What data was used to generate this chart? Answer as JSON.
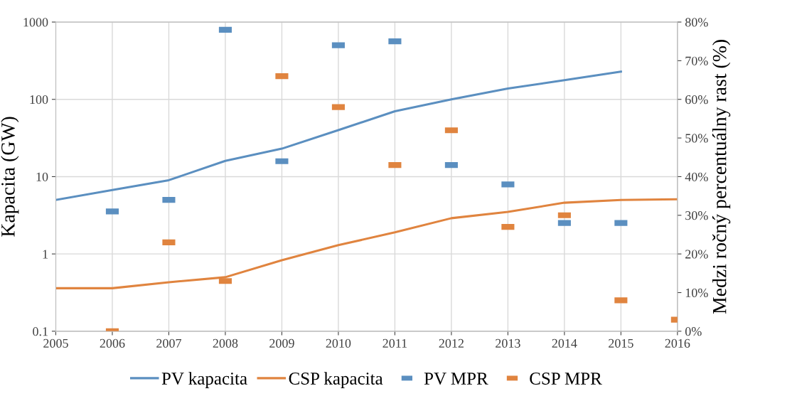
{
  "chart_data": {
    "type": "line",
    "x": [
      2005,
      2006,
      2007,
      2008,
      2009,
      2010,
      2011,
      2012,
      2013,
      2014,
      2015,
      2016
    ],
    "ylabel": "Kapacita (GW)",
    "y2label": "Medzi ročný percentuálny rast (%)",
    "xlim": [
      2005,
      2016
    ],
    "xticks": [
      2005,
      2006,
      2007,
      2008,
      2009,
      2010,
      2011,
      2012,
      2013,
      2014,
      2015,
      2016
    ],
    "log": "y",
    "ylim": [
      0.1,
      1000
    ],
    "yticks": [
      0.1,
      1,
      10,
      100,
      1000
    ],
    "y2lim": [
      0,
      80
    ],
    "y2ticks": [
      {
        "value": 0,
        "label": "0%"
      },
      {
        "value": 10,
        "label": "10%"
      },
      {
        "value": 20,
        "label": "20%"
      },
      {
        "value": 30,
        "label": "30%"
      },
      {
        "value": 40,
        "label": "40%"
      },
      {
        "value": 50,
        "label": "50%"
      },
      {
        "value": 60,
        "label": "60%"
      },
      {
        "value": 70,
        "label": "70%"
      },
      {
        "value": 80,
        "label": "80%"
      }
    ],
    "grid": true,
    "legend": "bottom",
    "series": [
      {
        "name": "PV kapacita",
        "color": "#5b8fc0",
        "values": [
          5.0,
          6.7,
          9.0,
          16,
          23,
          40,
          70,
          100,
          138,
          177,
          228,
          null
        ]
      },
      {
        "name": "CSP kapacita",
        "color": "#e0843f",
        "values": [
          0.36,
          0.36,
          0.43,
          0.5,
          0.83,
          1.3,
          1.9,
          2.9,
          3.5,
          4.6,
          5.0,
          5.1
        ]
      },
      {
        "name": "PV MPR",
        "type": "scatter",
        "axis": "y2",
        "marker": "square",
        "color": "#5b8fc0",
        "values": [
          null,
          31,
          34,
          78,
          44,
          74,
          75,
          43,
          38,
          28,
          28,
          null
        ]
      },
      {
        "name": "CSP MPR",
        "type": "scatter",
        "axis": "y2",
        "marker": "square",
        "color": "#e0843f",
        "values": [
          null,
          0,
          23,
          13,
          66,
          58,
          43,
          52,
          27,
          30,
          8,
          3
        ]
      }
    ]
  }
}
